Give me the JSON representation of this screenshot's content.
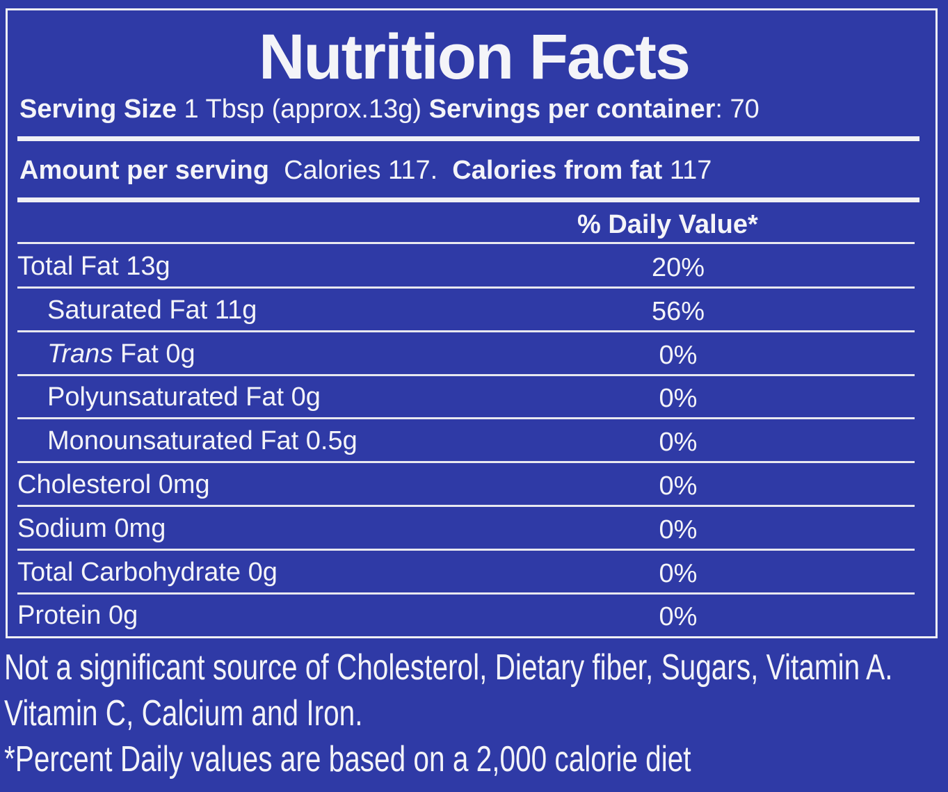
{
  "title": "Nutrition Facts",
  "serving": {
    "size_label": "Serving Size",
    "size_value": "1 Tbsp (approx.13g)",
    "per_container_label": "Servings per container",
    "per_container_value": ": 70"
  },
  "amount": {
    "label": "Amount per serving",
    "calories": "Calories 117.",
    "fat_label": "Calories from fat",
    "fat_value": "117"
  },
  "daily_value_header": "% Daily Value*",
  "rows": [
    {
      "label": "Total Fat 13g",
      "dv": "20%"
    },
    {
      "label": "Saturated Fat 11g",
      "dv": "56%"
    },
    {
      "label_italic": "Trans",
      "label": "Fat 0g",
      "dv": "0%"
    },
    {
      "label": "Polyunsaturated Fat 0g",
      "dv": "0%"
    },
    {
      "label": "Monounsaturated Fat 0.5g",
      "dv": "0%"
    },
    {
      "label": "Cholesterol 0mg",
      "dv": "0%"
    },
    {
      "label": "Sodium 0mg",
      "dv": "0%"
    },
    {
      "label": "Total Carbohydrate 0g",
      "dv": "0%"
    },
    {
      "label": "Protein 0g",
      "dv": "0%"
    }
  ],
  "footnotes": [
    "Not a significant source of Cholesterol, Dietary fiber, Sugars, Vitamin A.",
    "Vitamin C, Calcium and Iron.",
    "*Percent Daily values are based on a 2,000 calorie diet"
  ]
}
